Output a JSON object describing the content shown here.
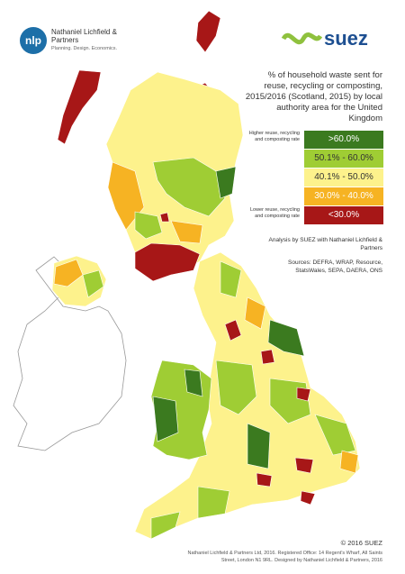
{
  "header": {
    "nlp_logo": "nlp",
    "nlp_name": "Nathaniel Lichfield & Partners",
    "nlp_tagline": "Planning. Design. Economics.",
    "suez_logo": "suez"
  },
  "title": "% of household waste sent for reuse, recycling or composting, 2015/2016 (Scotland, 2015) by local authority area for the United Kingdom",
  "legend": {
    "high_note": "Higher reuse, recycling and composting rate",
    "low_note": "Lower reuse, recycling and composting rate",
    "items": [
      {
        "label": ">60.0%",
        "color": "#3b7a1f"
      },
      {
        "label": "50.1% - 60.0%",
        "color": "#9fcd34"
      },
      {
        "label": "40.1% - 50.0%",
        "color": "#fdf28c"
      },
      {
        "label": "30.0% - 40.0%",
        "color": "#f6b323"
      },
      {
        "label": "<30.0%",
        "color": "#a71717"
      }
    ]
  },
  "credit": "Analysis by SUEZ with Nathaniel Lichfield & Partners",
  "sources": "Sources: DEFRA, WRAP, Resource, StatsWales, SEPA, DAERA, ONS",
  "copyright": "© 2016 SUEZ",
  "footer": "Nathaniel Lichfield & Partners Ltd, 2016. Registered Office: 14 Regent's Wharf, All Saints Street, London N1 9RL. Designed by Nathaniel Lichfield & Partners, 2016"
}
